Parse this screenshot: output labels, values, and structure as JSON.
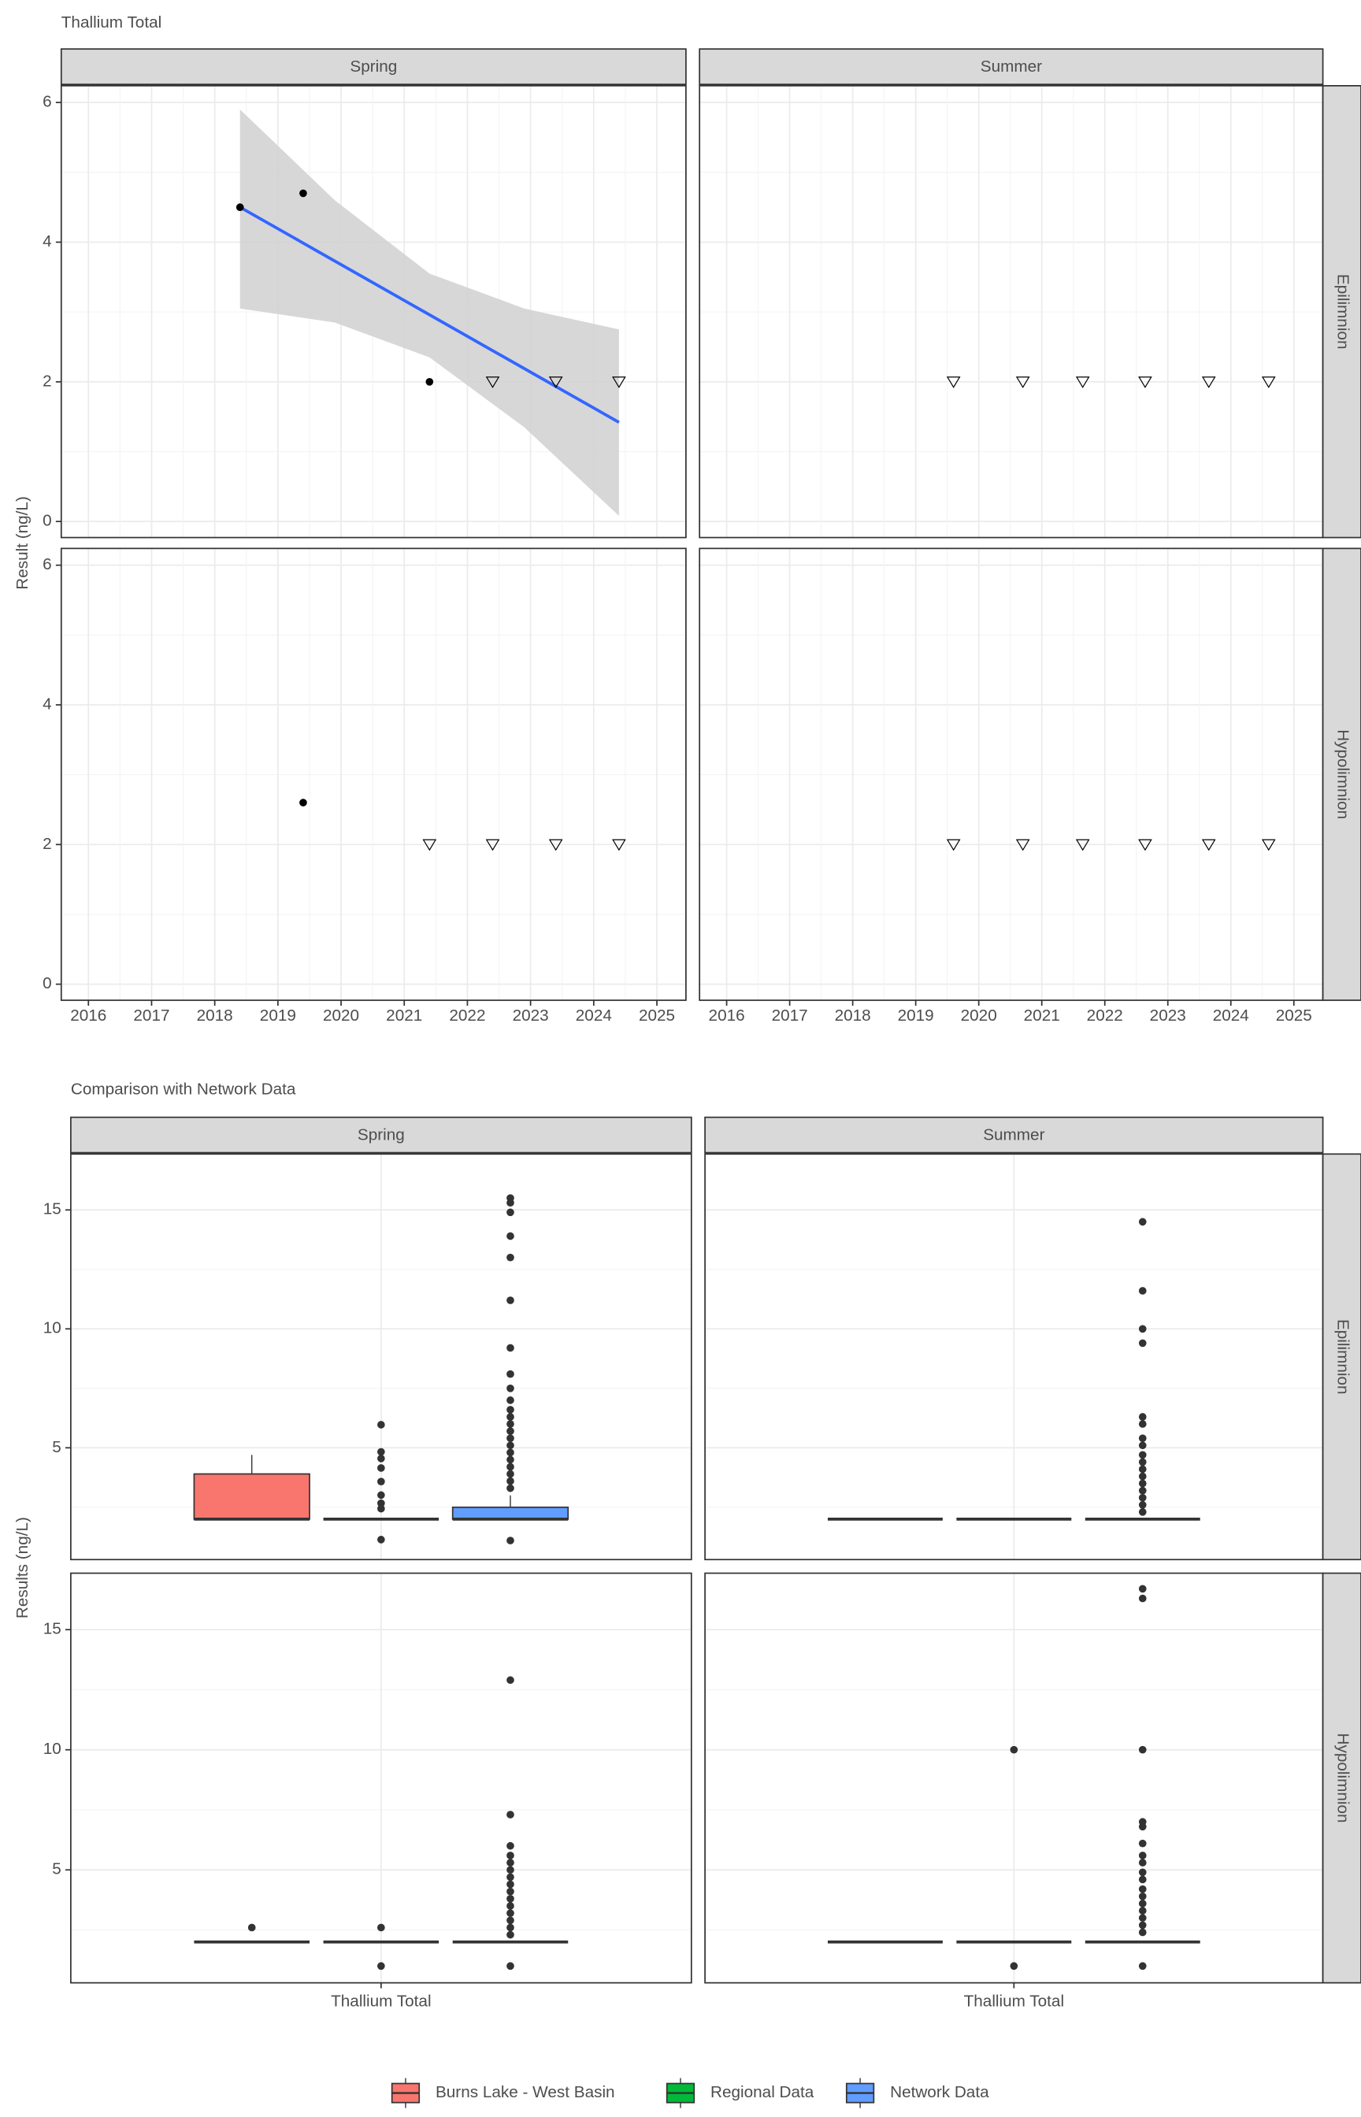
{
  "chart_data": [
    {
      "type": "scatter",
      "title": "Thallium Total",
      "ylabel": "Result (ng/L)",
      "columns": [
        "Spring",
        "Summer"
      ],
      "rows": [
        "Epilimnion",
        "Hypolimnion"
      ],
      "xlim": [
        2015.57,
        2025.46
      ],
      "xticks": [
        2016,
        2017,
        2018,
        2019,
        2020,
        2021,
        2022,
        2023,
        2024,
        2025
      ],
      "ylim": [
        -0.23,
        6.24
      ],
      "yticks": [
        0,
        2,
        4,
        6
      ],
      "grid": true,
      "point_color": "#000000",
      "trend_color": "#3366FF",
      "ribbon_color": "#d3d3d3",
      "panels": [
        [
          {
            "detected": {
              "x": [
                2018.4,
                2019.4,
                2021.4
              ],
              "y": [
                4.5,
                4.7,
                2.0
              ]
            },
            "nondetect": {
              "x": [
                2022.4,
                2023.4,
                2024.4
              ],
              "y": [
                2,
                2,
                2
              ]
            },
            "trend": {
              "x": [
                2018.4,
                2019.9,
                2021.4,
                2022.9,
                2024.4
              ],
              "y": [
                4.5,
                3.73,
                2.96,
                2.19,
                1.42
              ],
              "lower": [
                3.05,
                2.85,
                2.35,
                1.35,
                0.08
              ],
              "upper": [
                5.9,
                4.6,
                3.55,
                3.05,
                2.75
              ]
            }
          },
          {
            "detected": {
              "x": [],
              "y": []
            },
            "nondetect": {
              "x": [
                2019.6,
                2020.7,
                2021.65,
                2022.64,
                2023.65,
                2024.6
              ],
              "y": [
                2,
                2,
                2,
                2,
                2,
                2
              ]
            }
          }
        ],
        [
          {
            "detected": {
              "x": [
                2019.4
              ],
              "y": [
                2.6
              ]
            },
            "nondetect": {
              "x": [
                2021.4,
                2022.4,
                2023.4,
                2024.4
              ],
              "y": [
                2,
                2,
                2,
                2
              ]
            }
          },
          {
            "detected": {
              "x": [],
              "y": []
            },
            "nondetect": {
              "x": [
                2019.6,
                2020.7,
                2021.65,
                2022.64,
                2023.65,
                2024.6
              ],
              "y": [
                2,
                2,
                2,
                2,
                2,
                2
              ]
            }
          }
        ]
      ]
    },
    {
      "type": "box",
      "title": "Comparison with Network Data",
      "ylabel": "Results (ng/L)",
      "category": "Thallium Total",
      "columns": [
        "Spring",
        "Summer"
      ],
      "rows": [
        "Epilimnion",
        "Hypolimnion"
      ],
      "ylim": [
        0.3,
        17.35
      ],
      "yticks": [
        5,
        10,
        15
      ],
      "grid": true,
      "legend": "bottom",
      "series": [
        {
          "name": "Burns Lake - West Basin",
          "color": "#F8766D"
        },
        {
          "name": "Regional Data",
          "color": "#00BA38"
        },
        {
          "name": "Network Data",
          "color": "#619CFF"
        }
      ],
      "panels": [
        [
          [
            {
              "q1": 2,
              "median": 2,
              "q3": 3.9,
              "whisker_low": 2,
              "whisker_high": 4.7,
              "outliers": []
            },
            {
              "q1": 2,
              "median": 2,
              "q3": 2,
              "whisker_low": 2,
              "whisker_high": 2,
              "outliers": [
                5.97,
                4.83,
                4.55,
                4.15,
                3.58,
                3.01,
                2.67,
                2.44,
                1.14
              ]
            },
            {
              "q1": 2,
              "median": 2,
              "q3": 2.5,
              "whisker_low": 2,
              "whisker_high": 3.0,
              "outliers": [
                15.5,
                15.3,
                14.9,
                13.9,
                13.0,
                11.2,
                9.2,
                8.1,
                7.5,
                7.0,
                6.6,
                6.3,
                6.0,
                5.7,
                5.4,
                5.1,
                4.8,
                4.5,
                4.2,
                3.9,
                3.6,
                3.3,
                1.1
              ]
            }
          ],
          [
            {
              "q1": 2,
              "median": 2,
              "q3": 2,
              "whisker_low": 2,
              "whisker_high": 2,
              "outliers": []
            },
            {
              "q1": 2,
              "median": 2,
              "q3": 2,
              "whisker_low": 2,
              "whisker_high": 2,
              "outliers": []
            },
            {
              "q1": 2,
              "median": 2,
              "q3": 2,
              "whisker_low": 2,
              "whisker_high": 2,
              "outliers": [
                14.5,
                11.6,
                10.0,
                9.4,
                6.3,
                6.0,
                5.4,
                5.1,
                4.7,
                4.4,
                4.1,
                3.8,
                3.5,
                3.2,
                2.9,
                2.6,
                2.3
              ]
            }
          ]
        ],
        [
          [
            {
              "q1": 2,
              "median": 2,
              "q3": 2,
              "whisker_low": 2,
              "whisker_high": 2,
              "outliers": [
                2.6
              ]
            },
            {
              "q1": 2,
              "median": 2,
              "q3": 2,
              "whisker_low": 2,
              "whisker_high": 2,
              "outliers": [
                2.6,
                1.0
              ]
            },
            {
              "q1": 2,
              "median": 2,
              "q3": 2,
              "whisker_low": 2,
              "whisker_high": 2,
              "outliers": [
                12.9,
                7.3,
                6.0,
                5.6,
                5.3,
                5.0,
                4.7,
                4.4,
                4.1,
                3.8,
                3.5,
                3.2,
                2.9,
                2.6,
                2.3,
                1.0
              ]
            }
          ],
          [
            {
              "q1": 2,
              "median": 2,
              "q3": 2,
              "whisker_low": 2,
              "whisker_high": 2,
              "outliers": []
            },
            {
              "q1": 2,
              "median": 2,
              "q3": 2,
              "whisker_low": 2,
              "whisker_high": 2,
              "outliers": [
                10.0,
                1.0
              ]
            },
            {
              "q1": 2,
              "median": 2,
              "q3": 2,
              "whisker_low": 2,
              "whisker_high": 2,
              "outliers": [
                16.7,
                16.3,
                10.0,
                7.0,
                6.8,
                6.1,
                5.6,
                5.3,
                4.9,
                4.6,
                4.2,
                3.9,
                3.6,
                3.3,
                3.0,
                2.7,
                2.4,
                1.0
              ]
            }
          ]
        ]
      ]
    }
  ]
}
